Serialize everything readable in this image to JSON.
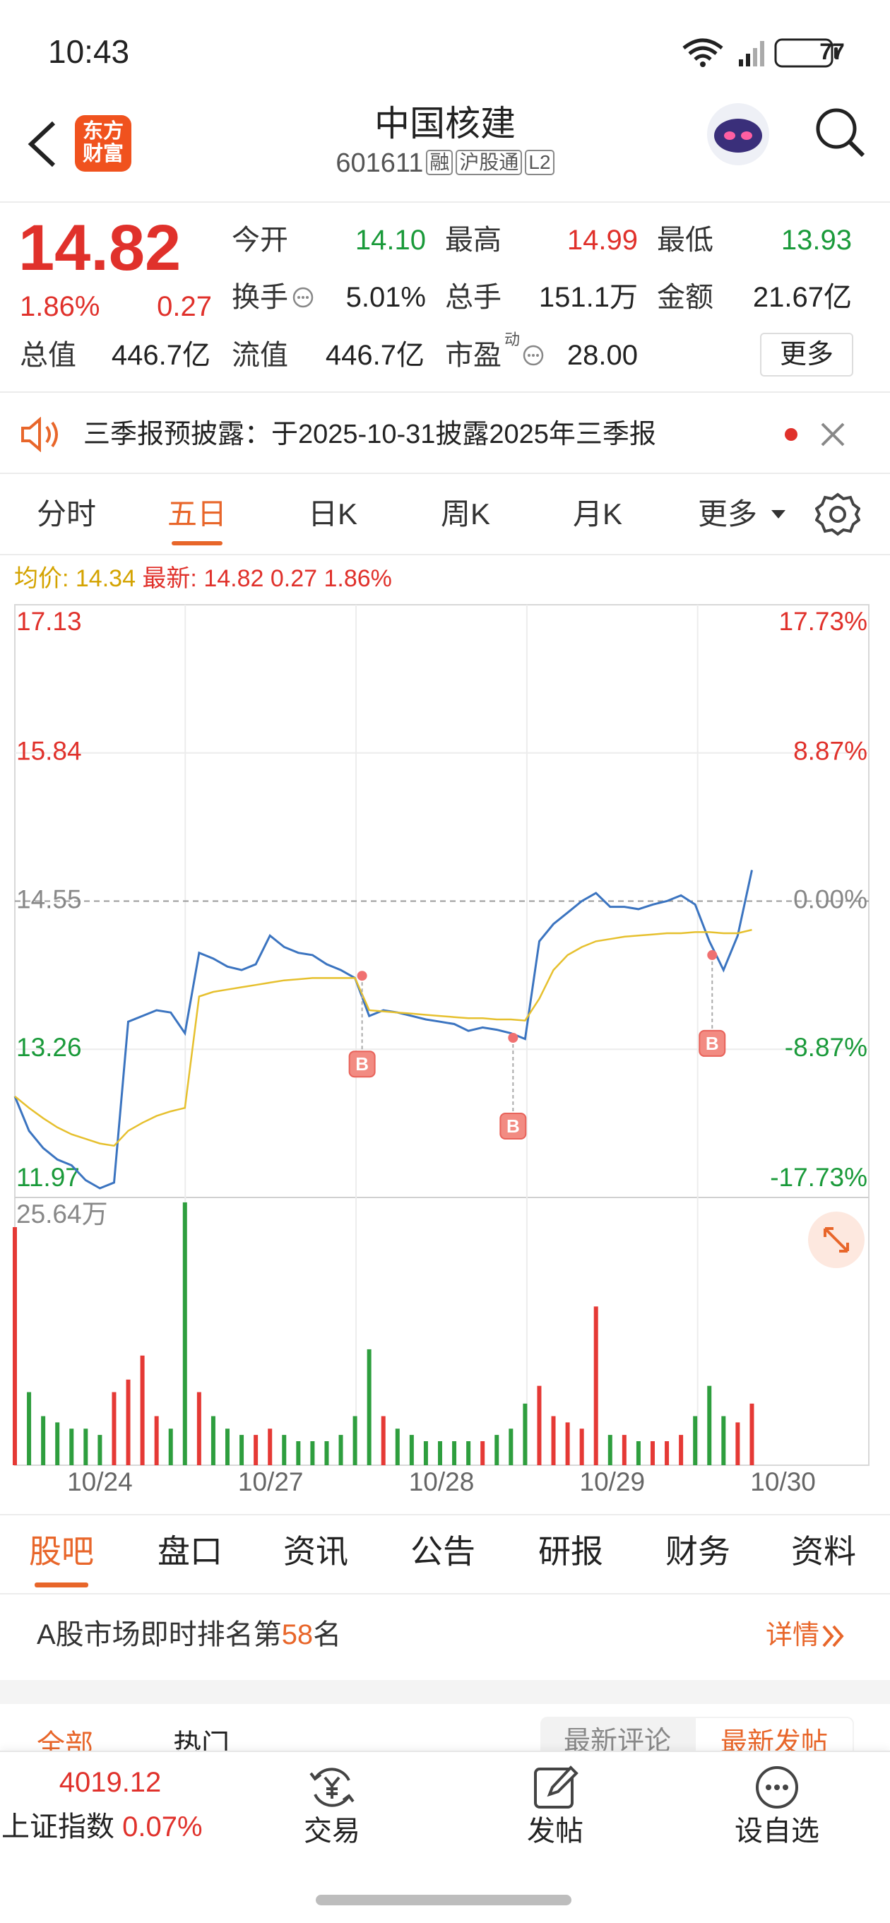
{
  "status_bar": {
    "time": "10:43",
    "battery": "77"
  },
  "header": {
    "logo": [
      "东方",
      "财富"
    ],
    "title": "中国核建",
    "code": "601611",
    "tags": [
      "融",
      "沪股通",
      "L2"
    ]
  },
  "quote": {
    "price": "14.82",
    "change_pct": "1.86%",
    "change": "0.27",
    "fields": [
      {
        "label": "今开",
        "value": "14.10"
      },
      {
        "label": "最高",
        "value": "14.99"
      },
      {
        "label": "最低",
        "value": "13.93"
      },
      {
        "label": "换手",
        "value": "5.01%"
      },
      {
        "label": "总手",
        "value": "151.1万"
      },
      {
        "label": "金额",
        "value": "21.67亿"
      },
      {
        "label": "总值",
        "value": "446.7亿"
      },
      {
        "label": "流值",
        "value": "446.7亿"
      },
      {
        "label": "市盈",
        "value": "28.00"
      }
    ],
    "pe_superscript": "动",
    "more": "更多"
  },
  "notice": {
    "text": "三季报预披露：于2025-10-31披露2025年三季报"
  },
  "chart_tabs": {
    "items": [
      "分时",
      "五日",
      "日K",
      "周K",
      "月K",
      "更多"
    ],
    "active": 1
  },
  "legend": {
    "avg": "均价: 14.34",
    "latest": "最新: 14.82 0.27 1.86%"
  },
  "chart_data": [
    {
      "type": "line",
      "x": [
        0,
        20,
        40,
        60,
        80,
        100,
        120,
        140,
        160,
        180,
        200,
        220,
        240,
        260,
        280,
        300,
        320,
        340,
        360,
        380,
        400,
        420,
        440,
        460,
        480,
        500,
        520,
        540,
        560,
        580,
        600,
        620,
        640,
        660,
        680,
        700,
        720,
        740,
        760,
        780,
        800,
        820,
        840,
        860,
        880,
        900,
        920,
        940,
        960,
        980,
        1000,
        1020,
        1040
      ],
      "xlim": [
        0,
        1205
      ],
      "xticks": [
        {
          "value": 120,
          "label": "10/24"
        },
        {
          "value": 361,
          "label": "10/27"
        },
        {
          "value": 602,
          "label": "10/28"
        },
        {
          "value": 843,
          "label": "10/29"
        },
        {
          "value": 1084,
          "label": "10/30"
        }
      ],
      "ylim": [
        11.97,
        17.13
      ],
      "yticks": [
        17.13,
        15.84,
        14.55,
        13.26,
        11.97
      ],
      "y2lim": [
        -17.73,
        17.73
      ],
      "y2ticks": [
        {
          "value": 17.73,
          "label": "17.73%"
        },
        {
          "value": 8.87,
          "label": "8.87%"
        },
        {
          "value": 0,
          "label": "0.00%"
        },
        {
          "value": -8.87,
          "label": "-8.87%"
        },
        {
          "value": -17.73,
          "label": "-17.73%"
        }
      ],
      "grid": true,
      "series": [
        {
          "color": "#3b74c0",
          "values": [
            12.85,
            12.55,
            12.4,
            12.3,
            12.25,
            12.12,
            12.05,
            12.1,
            13.5,
            13.55,
            13.6,
            13.58,
            13.4,
            14.1,
            14.05,
            13.98,
            13.95,
            14.0,
            14.25,
            14.15,
            14.1,
            14.08,
            14.0,
            13.95,
            13.88,
            13.55,
            13.6,
            13.58,
            13.55,
            13.52,
            13.5,
            13.48,
            13.42,
            13.45,
            13.43,
            13.4,
            13.35,
            14.2,
            14.35,
            14.45,
            14.55,
            14.62,
            14.5,
            14.5,
            14.48,
            14.52,
            14.55,
            14.6,
            14.52,
            14.2,
            13.95,
            14.25,
            14.82
          ]
        },
        {
          "color": "#e6c02e",
          "values": [
            12.85,
            12.75,
            12.66,
            12.58,
            12.52,
            12.48,
            12.44,
            12.42,
            12.55,
            12.62,
            12.68,
            12.72,
            12.75,
            13.72,
            13.76,
            13.78,
            13.8,
            13.82,
            13.84,
            13.86,
            13.87,
            13.88,
            13.88,
            13.88,
            13.88,
            13.6,
            13.59,
            13.58,
            13.57,
            13.56,
            13.55,
            13.54,
            13.53,
            13.53,
            13.52,
            13.52,
            13.51,
            13.7,
            13.95,
            14.08,
            14.15,
            14.2,
            14.22,
            14.24,
            14.25,
            14.26,
            14.27,
            14.27,
            14.28,
            14.28,
            14.27,
            14.27,
            14.3
          ]
        }
      ],
      "annotations": [
        {
          "x": 490,
          "y": 13.9,
          "label": "B"
        },
        {
          "x": 703,
          "y": 13.36,
          "label": "B"
        },
        {
          "x": 984,
          "y": 14.08,
          "label": "B"
        }
      ]
    },
    {
      "type": "bar",
      "x": [
        0,
        20,
        40,
        60,
        80,
        100,
        120,
        140,
        160,
        180,
        200,
        220,
        240,
        260,
        280,
        300,
        320,
        340,
        360,
        380,
        400,
        420,
        440,
        460,
        480,
        500,
        520,
        540,
        560,
        580,
        600,
        620,
        640,
        660,
        680,
        700,
        720,
        740,
        760,
        780,
        800,
        820,
        840,
        860,
        880,
        900,
        920,
        940,
        960,
        980,
        1000,
        1020,
        1040
      ],
      "xlim": [
        0,
        1205
      ],
      "ylim": [
        0,
        256400
      ],
      "yticks": [
        {
          "value": 256400,
          "label": "25.64万"
        }
      ],
      "up_color": "#e53935",
      "down_color": "#2e9e3e",
      "values": [
        228000,
        70000,
        47000,
        41000,
        35000,
        35000,
        29000,
        70000,
        82000,
        105000,
        47000,
        35000,
        251700,
        70000,
        47000,
        35000,
        29000,
        29000,
        35000,
        29000,
        23000,
        23000,
        23000,
        29000,
        47000,
        111000,
        47000,
        35000,
        29000,
        23000,
        23000,
        23000,
        23000,
        23000,
        29000,
        35000,
        59000,
        76000,
        47000,
        41000,
        35000,
        152000,
        29000,
        29000,
        23000,
        23000,
        23000,
        29000,
        47000,
        76000,
        47000,
        41000,
        59000
      ]
    }
  ],
  "section_tabs": {
    "items": [
      "股吧",
      "盘口",
      "资讯",
      "公告",
      "研报",
      "财务",
      "资料"
    ],
    "active": 0
  },
  "ranking": {
    "prefix": "A股市场即时排名第",
    "rank": "58",
    "suffix": "名",
    "link": "详情"
  },
  "filters": {
    "left": [
      "全部",
      "热门"
    ],
    "right": [
      "最新评论",
      "最新发帖"
    ]
  },
  "bottom_bar": {
    "index_value": "4019.12",
    "index_name": "上证指数",
    "index_change": "0.07%",
    "actions": [
      "交易",
      "发帖",
      "设自选"
    ]
  }
}
